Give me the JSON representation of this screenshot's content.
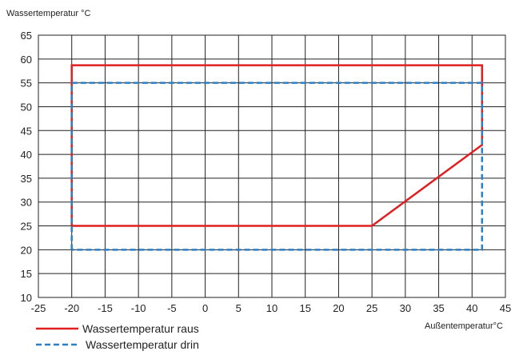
{
  "chart_data": {
    "type": "line",
    "ylabel": "Wassertemperatur °C",
    "xlabel": "Außentemperatur°C",
    "xlim": [
      -25,
      45
    ],
    "ylim": [
      10,
      65
    ],
    "xticks": [
      -25,
      -20,
      -15,
      -10,
      -5,
      0,
      5,
      10,
      15,
      20,
      25,
      30,
      35,
      40,
      45
    ],
    "yticks": [
      10,
      15,
      20,
      25,
      30,
      35,
      40,
      45,
      50,
      55,
      60,
      65
    ],
    "grid": true,
    "legend_position": "bottom-left",
    "series": [
      {
        "name": "Wassertemperatur raus",
        "color": "#e02020",
        "style": "solid",
        "points": [
          [
            -20,
            25
          ],
          [
            -20,
            58.7
          ],
          [
            41.5,
            58.7
          ],
          [
            41.5,
            42
          ],
          [
            25,
            25
          ],
          [
            -20,
            25
          ]
        ]
      },
      {
        "name": "Wassertemperatur drin",
        "color": "#2a7fc7",
        "style": "dashed",
        "points": [
          [
            -20,
            20
          ],
          [
            -20,
            55
          ],
          [
            41.5,
            55
          ],
          [
            41.5,
            20
          ],
          [
            -20,
            20
          ]
        ]
      }
    ]
  }
}
